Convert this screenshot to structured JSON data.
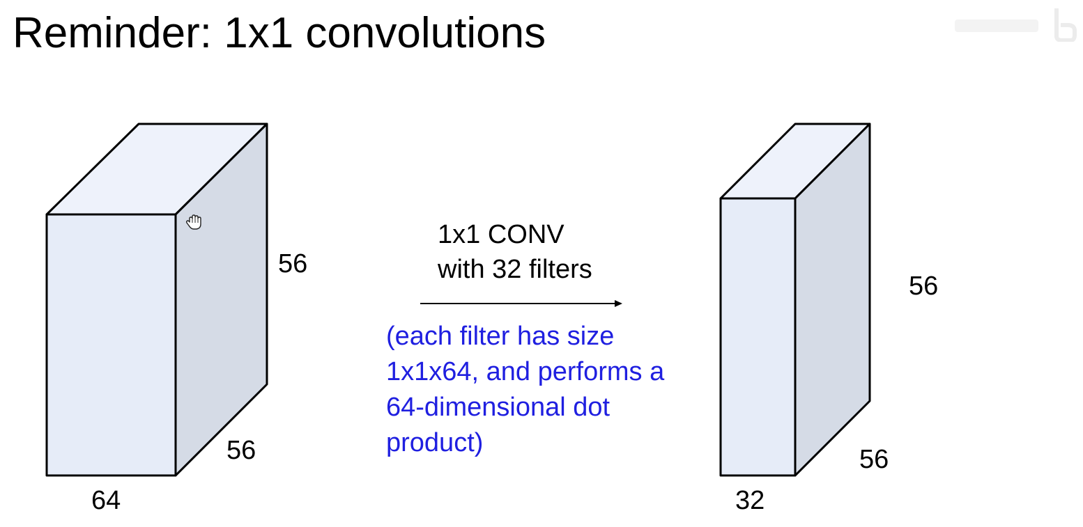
{
  "slide": {
    "title": "Reminder: 1x1 convolutions"
  },
  "input_volume": {
    "width_label": "64",
    "height_label": "56",
    "depth_label": "56",
    "face_color": "#e6ecf8",
    "side_color": "#d5dbe6"
  },
  "operation": {
    "line1": "1x1 CONV",
    "line2": "with 32 filters"
  },
  "note": {
    "lines": [
      "(each filter has size",
      "1x1x64, and performs a",
      "64-dimensional dot",
      "product)"
    ],
    "color": "#1f1fe0"
  },
  "output_volume": {
    "width_label": "32",
    "height_label": "56",
    "depth_label": "56",
    "face_color": "#e6ecf8",
    "side_color": "#d5dbe6"
  }
}
